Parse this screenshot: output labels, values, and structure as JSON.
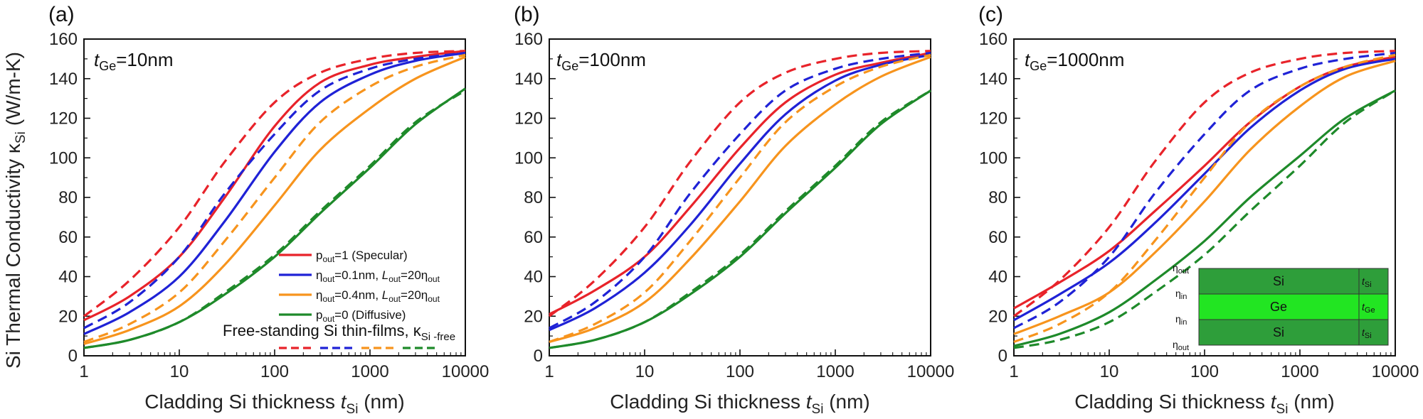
{
  "figure": {
    "ylabel_main": "Si Thermal Conductivity κ",
    "ylabel_sub": "Si",
    "ylabel_unit": "(W/m-K)",
    "xlabel_main": "Cladding Si thickness ",
    "xlabel_var": "t",
    "xlabel_sub": "Si",
    "xlabel_unit": " (nm)"
  },
  "legend": {
    "items": [
      {
        "key": "specular",
        "pre": "p",
        "sub": "out",
        "post": "=1 (Specular)",
        "color": "#e8232a"
      },
      {
        "key": "eta01",
        "pre": "η",
        "sub": "out",
        "mid": "=0.1nm, ",
        "var": "L",
        "sub2": "out",
        "post": "=20η",
        "sub3": "out",
        "color": "#1f22d6"
      },
      {
        "key": "eta04",
        "pre": "η",
        "sub": "out",
        "mid": "=0.4nm, ",
        "var": "L",
        "sub2": "out",
        "post": "=20η",
        "sub3": "out",
        "color": "#f7941d"
      },
      {
        "key": "diffusive",
        "pre": "p",
        "sub": "out",
        "post": "=0 (Diffusive)",
        "color": "#1e8a2a"
      }
    ],
    "free_label": "Free-standing Si thin-films, κ",
    "free_sub": "Si -free"
  },
  "inset": {
    "layers": [
      "Si",
      "Ge",
      "Si"
    ],
    "left_labels": [
      "η",
      "η",
      "η",
      "η"
    ],
    "left_subs": [
      "out",
      "in",
      "in",
      "out"
    ],
    "right_vars": [
      "t",
      "t",
      "t"
    ],
    "right_subs": [
      "Si",
      "Ge",
      "Si"
    ],
    "colors": {
      "si": "#2e9e3a",
      "ge": "#22e522",
      "border": "#333333"
    }
  },
  "chart_data": [
    {
      "type": "line",
      "panel": "(a)",
      "annotation": {
        "var": "t",
        "sub": "Ge",
        "value": "=10nm"
      },
      "xscale": "log",
      "xlim": [
        1,
        10000
      ],
      "ylim": [
        0,
        160
      ],
      "xticks": [
        "1",
        "10",
        "100",
        "1000",
        "10000"
      ],
      "yticks": [
        "0",
        "20",
        "40",
        "60",
        "80",
        "100",
        "120",
        "140",
        "160"
      ],
      "x": [
        1,
        3,
        10,
        30,
        100,
        300,
        1000,
        3000,
        10000
      ],
      "series": [
        {
          "key": "specular",
          "style": "solid",
          "color": "#e8232a",
          "y": [
            18,
            30,
            50,
            80,
            116,
            138,
            147,
            151,
            154
          ]
        },
        {
          "key": "eta01",
          "style": "solid",
          "color": "#1f22d6",
          "y": [
            11,
            22,
            40,
            68,
            103,
            128,
            142,
            149,
            153
          ]
        },
        {
          "key": "eta04",
          "style": "solid",
          "color": "#f7941d",
          "y": [
            6,
            13,
            25,
            46,
            76,
            104,
            125,
            140,
            151
          ]
        },
        {
          "key": "diffusive",
          "style": "solid",
          "color": "#1e8a2a",
          "y": [
            4,
            8,
            17,
            31,
            50,
            72,
            95,
            117,
            135
          ]
        },
        {
          "key": "specular",
          "style": "dashed",
          "color": "#e8232a",
          "y": [
            20,
            38,
            65,
            98,
            128,
            143,
            150,
            153,
            154
          ]
        },
        {
          "key": "eta01",
          "style": "dashed",
          "color": "#1f22d6",
          "y": [
            14,
            27,
            50,
            82,
            112,
            134,
            145,
            150,
            153
          ]
        },
        {
          "key": "eta04",
          "style": "dashed",
          "color": "#f7941d",
          "y": [
            7,
            16,
            32,
            58,
            90,
            118,
            136,
            146,
            152
          ]
        },
        {
          "key": "diffusive",
          "style": "dashed",
          "color": "#1e8a2a",
          "y": [
            4,
            8,
            17,
            32,
            51,
            73,
            96,
            118,
            134
          ]
        }
      ]
    },
    {
      "type": "line",
      "panel": "(b)",
      "annotation": {
        "var": "t",
        "sub": "Ge",
        "value": "=100nm"
      },
      "xscale": "log",
      "xlim": [
        1,
        10000
      ],
      "ylim": [
        0,
        160
      ],
      "xticks": [
        "1",
        "10",
        "100",
        "1000",
        "10000"
      ],
      "yticks": [
        "0",
        "20",
        "40",
        "60",
        "80",
        "100",
        "120",
        "140",
        "160"
      ],
      "x": [
        1,
        3,
        10,
        30,
        100,
        300,
        1000,
        3000,
        10000
      ],
      "series": [
        {
          "key": "specular",
          "style": "solid",
          "color": "#e8232a",
          "y": [
            21,
            33,
            50,
            75,
            105,
            128,
            142,
            148,
            153
          ]
        },
        {
          "key": "eta01",
          "style": "solid",
          "color": "#1f22d6",
          "y": [
            13,
            24,
            42,
            66,
            97,
            122,
            139,
            147,
            152
          ]
        },
        {
          "key": "eta04",
          "style": "solid",
          "color": "#f7941d",
          "y": [
            7,
            14,
            27,
            49,
            78,
            106,
            127,
            141,
            151
          ]
        },
        {
          "key": "diffusive",
          "style": "solid",
          "color": "#1e8a2a",
          "y": [
            4,
            8,
            17,
            31,
            50,
            72,
            95,
            117,
            134
          ]
        },
        {
          "key": "specular",
          "style": "dashed",
          "color": "#e8232a",
          "y": [
            20,
            38,
            65,
            98,
            128,
            143,
            150,
            153,
            154
          ]
        },
        {
          "key": "eta01",
          "style": "dashed",
          "color": "#1f22d6",
          "y": [
            14,
            27,
            50,
            82,
            112,
            134,
            145,
            150,
            153
          ]
        },
        {
          "key": "eta04",
          "style": "dashed",
          "color": "#f7941d",
          "y": [
            7,
            16,
            32,
            58,
            90,
            118,
            136,
            146,
            152
          ]
        },
        {
          "key": "diffusive",
          "style": "dashed",
          "color": "#1e8a2a",
          "y": [
            4,
            8,
            17,
            32,
            51,
            73,
            96,
            118,
            134
          ]
        }
      ]
    },
    {
      "type": "line",
      "panel": "(c)",
      "annotation": {
        "var": "t",
        "sub": "Ge",
        "value": "=1000nm"
      },
      "xscale": "log",
      "xlim": [
        1,
        10000
      ],
      "ylim": [
        0,
        160
      ],
      "xticks": [
        "1",
        "10",
        "100",
        "1000",
        "10000"
      ],
      "yticks": [
        "0",
        "20",
        "40",
        "60",
        "80",
        "100",
        "120",
        "140",
        "160"
      ],
      "x": [
        1,
        3,
        10,
        30,
        100,
        300,
        1000,
        3000,
        10000
      ],
      "series": [
        {
          "key": "specular",
          "style": "solid",
          "color": "#e8232a",
          "y": [
            24,
            37,
            53,
            73,
            96,
            118,
            136,
            146,
            151
          ]
        },
        {
          "key": "eta01",
          "style": "solid",
          "color": "#1f22d6",
          "y": [
            18,
            31,
            47,
            67,
            92,
            115,
            134,
            145,
            150
          ]
        },
        {
          "key": "eta04",
          "style": "solid",
          "color": "#f7941d",
          "y": [
            11,
            20,
            32,
            52,
            78,
            104,
            126,
            141,
            149
          ]
        },
        {
          "key": "diffusive",
          "style": "solid",
          "color": "#1e8a2a",
          "y": [
            5,
            11,
            22,
            38,
            58,
            80,
            101,
            120,
            134
          ]
        },
        {
          "key": "specular",
          "style": "dashed",
          "color": "#e8232a",
          "y": [
            20,
            38,
            65,
            98,
            128,
            143,
            150,
            153,
            154
          ]
        },
        {
          "key": "eta01",
          "style": "dashed",
          "color": "#1f22d6",
          "y": [
            14,
            27,
            50,
            82,
            112,
            134,
            145,
            150,
            153
          ]
        },
        {
          "key": "eta04",
          "style": "dashed",
          "color": "#f7941d",
          "y": [
            7,
            16,
            32,
            58,
            90,
            118,
            136,
            146,
            152
          ]
        },
        {
          "key": "diffusive",
          "style": "dashed",
          "color": "#1e8a2a",
          "y": [
            4,
            8,
            17,
            32,
            51,
            73,
            96,
            118,
            134
          ]
        }
      ]
    }
  ]
}
